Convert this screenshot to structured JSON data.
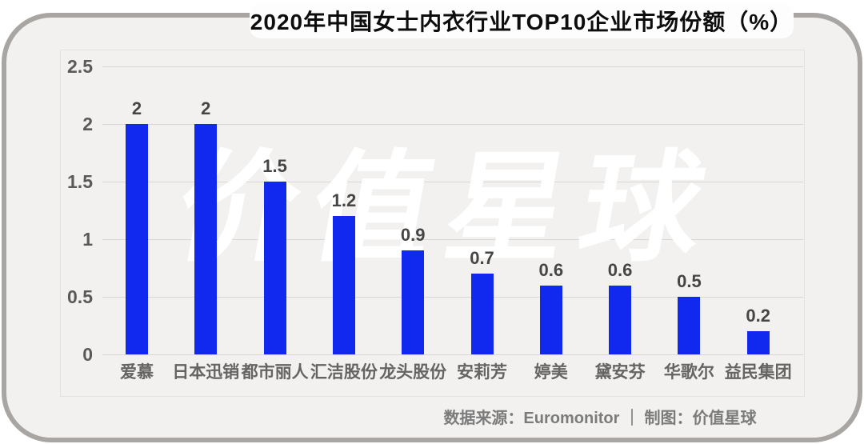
{
  "title": "2020年中国女士内衣行业TOP10企业市场份额（%）",
  "watermark": "价值星球",
  "footer": {
    "text": "数据来源：Euromonitor ｜ 制图：价值星球"
  },
  "colors": {
    "bar": "#1128ee",
    "card_background": "#f2f1ef",
    "card_border": "#a9a5a2",
    "gridline": "#d8d7d5",
    "watermark": "#ffffff",
    "title_text": "#0d0d0d",
    "label_text": "#454545",
    "axis_text": "#5a5a5a",
    "footer_text": "#7b7b7b"
  },
  "chart_data": {
    "type": "bar",
    "title": "2020年中国女士内衣行业TOP10企业市场份额（%）",
    "categories": [
      "爱慕",
      "日本迅销",
      "都市丽人",
      "汇洁股份",
      "龙头股份",
      "安莉芳",
      "婷美",
      "黛安芬",
      "华歌尔",
      "益民集团"
    ],
    "values": [
      2,
      2,
      1.5,
      1.2,
      0.9,
      0.7,
      0.6,
      0.6,
      0.5,
      0.2
    ],
    "value_labels": [
      "2",
      "2",
      "1.5",
      "1.2",
      "0.9",
      "0.7",
      "0.6",
      "0.6",
      "0.5",
      "0.2"
    ],
    "xlabel": "",
    "ylabel": "",
    "ylim": [
      0,
      2.5
    ],
    "yticks": [
      0,
      0.5,
      1,
      1.5,
      2,
      2.5
    ],
    "grid": true,
    "legend": false,
    "bar_color": "#1128ee"
  }
}
